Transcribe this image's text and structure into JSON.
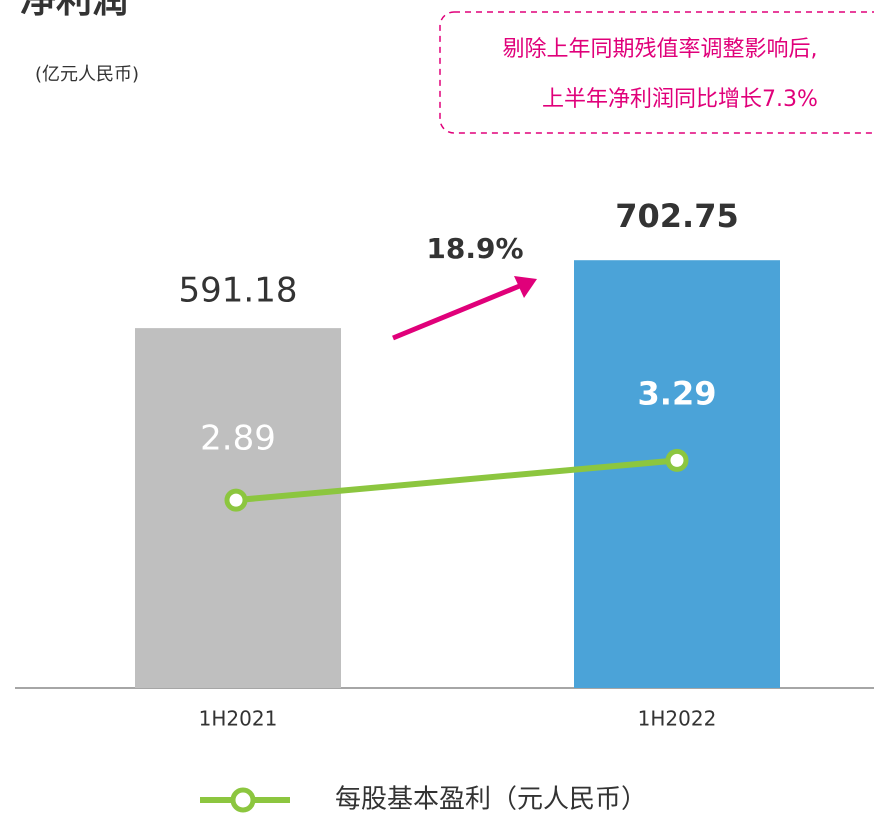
{
  "chart_data": {
    "type": "bar-line",
    "title": "净利润",
    "subtitle": "(亿元人民币)",
    "annotation": [
      "剔除上年同期残值率调整影响后,",
      "上半年净利润同比增长7.3%"
    ],
    "growth_label": "18.9%",
    "categories": [
      "1H2021",
      "1H2022"
    ],
    "bars": {
      "values": [
        591.18,
        702.75
      ],
      "colors": [
        "#bfbfbf",
        "#4ba3d8"
      ]
    },
    "ylim": [
      0,
      800
    ],
    "line": {
      "name": "每股基本盈利（元人民币）",
      "color": "#8cc63f",
      "values": [
        2.89,
        3.29
      ],
      "axis": "y2"
    },
    "y2lim": [
      1,
      5.9
    ]
  }
}
